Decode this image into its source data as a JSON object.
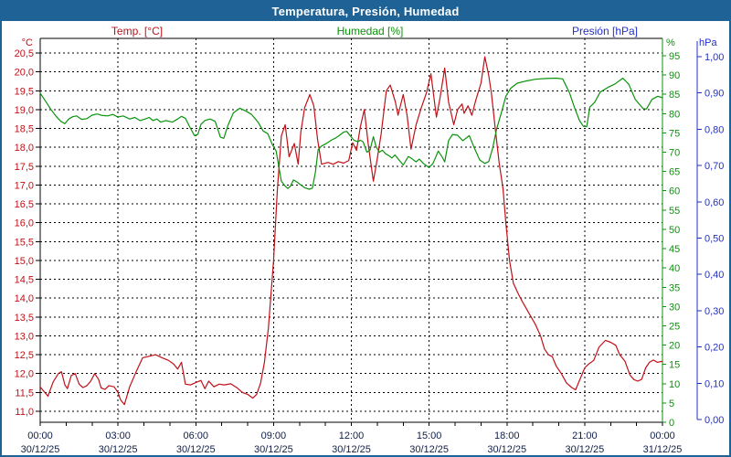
{
  "window_title": "Temperatura, Presión, Humedad",
  "colors": {
    "frame": "#1f6296",
    "titlebar_text": "#ffffff",
    "temperature": "#c01018",
    "humidity": "#0a930a",
    "pressure": "#2230c8",
    "x_labels": "#101f46",
    "grid": "#000000",
    "axis_black": "#000000",
    "plot_background": "#ffffff"
  },
  "legend": {
    "temperature": "Temp. [°C]",
    "humidity": "Humedad [%]",
    "pressure": "Presión [hPa]"
  },
  "chart_data": {
    "type": "line",
    "title": "Temperatura, Presión, Humedad",
    "grid": "dashed, horizontal every 0.5 °C of left axis, vertical every 3 h",
    "x_axis": {
      "range_hours": [
        0,
        24
      ],
      "minor_tick_every_hours": 1,
      "gridline_every_hours": 3,
      "tick_labels": [
        {
          "hour": 0,
          "time": "00:00",
          "date": "30/12/25"
        },
        {
          "hour": 3,
          "time": "03:00",
          "date": "30/12/25"
        },
        {
          "hour": 6,
          "time": "06:00",
          "date": "30/12/25"
        },
        {
          "hour": 9,
          "time": "09:00",
          "date": "30/12/25"
        },
        {
          "hour": 12,
          "time": "12:00",
          "date": "30/12/25"
        },
        {
          "hour": 15,
          "time": "15:00",
          "date": "30/12/25"
        },
        {
          "hour": 18,
          "time": "18:00",
          "date": "30/12/25"
        },
        {
          "hour": 21,
          "time": "21:00",
          "date": "30/12/25"
        },
        {
          "hour": 24,
          "time": "00:00",
          "date": "31/12/25"
        }
      ]
    },
    "axes": {
      "temperature": {
        "unit": "°C",
        "side": "left",
        "min": 11.0,
        "max": 20.5,
        "step": 0.5,
        "decimals": 1,
        "decimal_separator": ","
      },
      "humidity": {
        "unit": "%",
        "side": "right",
        "min": 0,
        "max": 95,
        "step": 5,
        "decimals": 0,
        "decimal_separator": ","
      },
      "pressure": {
        "unit": "hPa",
        "side": "far-right",
        "min": 0.0,
        "max": 1.0,
        "step": 0.1,
        "decimals": 2,
        "decimal_separator": ","
      }
    },
    "series": [
      {
        "name": "Temp. [°C]",
        "axis": "temperature",
        "color": "#c01018",
        "points": [
          [
            0,
            11.65
          ],
          [
            0.15,
            11.52
          ],
          [
            0.3,
            11.4
          ],
          [
            0.5,
            11.78
          ],
          [
            0.7,
            12.0
          ],
          [
            0.82,
            12.05
          ],
          [
            0.95,
            11.7
          ],
          [
            1.05,
            11.6
          ],
          [
            1.2,
            11.95
          ],
          [
            1.35,
            12.0
          ],
          [
            1.5,
            11.72
          ],
          [
            1.65,
            11.63
          ],
          [
            1.8,
            11.68
          ],
          [
            1.95,
            11.8
          ],
          [
            2.1,
            12.0
          ],
          [
            2.25,
            11.85
          ],
          [
            2.35,
            11.62
          ],
          [
            2.5,
            11.58
          ],
          [
            2.65,
            11.68
          ],
          [
            2.85,
            11.65
          ],
          [
            3.0,
            11.5
          ],
          [
            3.1,
            11.3
          ],
          [
            3.25,
            11.18
          ],
          [
            3.45,
            11.65
          ],
          [
            3.7,
            12.05
          ],
          [
            3.95,
            12.42
          ],
          [
            4.2,
            12.46
          ],
          [
            4.45,
            12.5
          ],
          [
            4.7,
            12.42
          ],
          [
            4.95,
            12.35
          ],
          [
            5.15,
            12.25
          ],
          [
            5.3,
            12.12
          ],
          [
            5.45,
            12.3
          ],
          [
            5.6,
            11.72
          ],
          [
            5.8,
            11.7
          ],
          [
            6.0,
            11.76
          ],
          [
            6.2,
            11.82
          ],
          [
            6.35,
            11.6
          ],
          [
            6.5,
            11.8
          ],
          [
            6.7,
            11.65
          ],
          [
            6.9,
            11.72
          ],
          [
            7.1,
            11.7
          ],
          [
            7.35,
            11.73
          ],
          [
            7.6,
            11.62
          ],
          [
            7.8,
            11.5
          ],
          [
            8.0,
            11.45
          ],
          [
            8.2,
            11.35
          ],
          [
            8.35,
            11.45
          ],
          [
            8.5,
            11.75
          ],
          [
            8.65,
            12.3
          ],
          [
            8.8,
            13.2
          ],
          [
            9.0,
            15.0
          ],
          [
            9.15,
            16.9
          ],
          [
            9.3,
            18.3
          ],
          [
            9.45,
            18.6
          ],
          [
            9.6,
            17.75
          ],
          [
            9.8,
            18.1
          ],
          [
            9.95,
            17.55
          ],
          [
            10.05,
            18.4
          ],
          [
            10.2,
            19.05
          ],
          [
            10.4,
            19.4
          ],
          [
            10.55,
            19.1
          ],
          [
            10.7,
            18.2
          ],
          [
            10.85,
            17.55
          ],
          [
            11.1,
            17.6
          ],
          [
            11.3,
            17.55
          ],
          [
            11.5,
            17.62
          ],
          [
            11.7,
            17.58
          ],
          [
            11.9,
            17.65
          ],
          [
            12.05,
            18.12
          ],
          [
            12.2,
            17.92
          ],
          [
            12.35,
            18.55
          ],
          [
            12.5,
            19.0
          ],
          [
            12.65,
            18.1
          ],
          [
            12.85,
            17.1
          ],
          [
            13.0,
            17.7
          ],
          [
            13.15,
            18.35
          ],
          [
            13.35,
            19.5
          ],
          [
            13.5,
            19.65
          ],
          [
            13.7,
            19.2
          ],
          [
            13.8,
            18.85
          ],
          [
            14.0,
            19.4
          ],
          [
            14.15,
            18.85
          ],
          [
            14.3,
            17.95
          ],
          [
            14.5,
            18.6
          ],
          [
            14.7,
            19.05
          ],
          [
            14.9,
            19.45
          ],
          [
            15.07,
            19.95
          ],
          [
            15.28,
            18.8
          ],
          [
            15.42,
            19.3
          ],
          [
            15.6,
            20.1
          ],
          [
            15.75,
            19.2
          ],
          [
            15.95,
            18.6
          ],
          [
            16.1,
            19.0
          ],
          [
            16.27,
            19.15
          ],
          [
            16.35,
            18.9
          ],
          [
            16.5,
            19.1
          ],
          [
            16.65,
            18.85
          ],
          [
            16.8,
            19.25
          ],
          [
            17.0,
            19.7
          ],
          [
            17.15,
            20.4
          ],
          [
            17.3,
            19.9
          ],
          [
            17.4,
            19.45
          ],
          [
            17.55,
            18.5
          ],
          [
            17.7,
            17.6
          ],
          [
            17.85,
            16.9
          ],
          [
            17.96,
            16.0
          ],
          [
            18.1,
            15.0
          ],
          [
            18.25,
            14.4
          ],
          [
            18.45,
            14.1
          ],
          [
            18.6,
            13.9
          ],
          [
            18.85,
            13.6
          ],
          [
            19.1,
            13.3
          ],
          [
            19.3,
            13.0
          ],
          [
            19.45,
            12.65
          ],
          [
            19.6,
            12.5
          ],
          [
            19.75,
            12.45
          ],
          [
            19.9,
            12.2
          ],
          [
            20.1,
            12.0
          ],
          [
            20.3,
            11.75
          ],
          [
            20.5,
            11.63
          ],
          [
            20.65,
            11.57
          ],
          [
            20.85,
            11.9
          ],
          [
            21.0,
            12.15
          ],
          [
            21.15,
            12.25
          ],
          [
            21.35,
            12.35
          ],
          [
            21.55,
            12.7
          ],
          [
            21.8,
            12.88
          ],
          [
            22.0,
            12.83
          ],
          [
            22.2,
            12.75
          ],
          [
            22.35,
            12.5
          ],
          [
            22.55,
            12.33
          ],
          [
            22.75,
            11.96
          ],
          [
            22.9,
            11.84
          ],
          [
            23.05,
            11.8
          ],
          [
            23.2,
            11.85
          ],
          [
            23.35,
            12.15
          ],
          [
            23.5,
            12.3
          ],
          [
            23.65,
            12.36
          ],
          [
            23.8,
            12.3
          ],
          [
            23.95,
            12.32
          ],
          [
            24,
            12.32
          ]
        ]
      },
      {
        "name": "Humedad [%]",
        "axis": "humidity",
        "color": "#0a930a",
        "points": [
          [
            0,
            85.3
          ],
          [
            0.2,
            83.3
          ],
          [
            0.4,
            81.2
          ],
          [
            0.6,
            79.4
          ],
          [
            0.8,
            78.0
          ],
          [
            0.95,
            77.4
          ],
          [
            1.1,
            78.6
          ],
          [
            1.25,
            79.2
          ],
          [
            1.4,
            79.4
          ],
          [
            1.6,
            78.5
          ],
          [
            1.8,
            78.7
          ],
          [
            2.0,
            79.6
          ],
          [
            2.2,
            79.9
          ],
          [
            2.4,
            79.5
          ],
          [
            2.6,
            79.4
          ],
          [
            2.8,
            79.8
          ],
          [
            3.0,
            79.1
          ],
          [
            3.2,
            79.4
          ],
          [
            3.45,
            78.6
          ],
          [
            3.65,
            79.0
          ],
          [
            3.85,
            78.2
          ],
          [
            4.05,
            78.6
          ],
          [
            4.2,
            79.0
          ],
          [
            4.35,
            78.2
          ],
          [
            4.5,
            78.6
          ],
          [
            4.65,
            77.8
          ],
          [
            4.85,
            78.2
          ],
          [
            5.1,
            77.8
          ],
          [
            5.3,
            78.6
          ],
          [
            5.45,
            79.3
          ],
          [
            5.6,
            78.8
          ],
          [
            5.78,
            76.4
          ],
          [
            5.95,
            74.3
          ],
          [
            6.08,
            74.6
          ],
          [
            6.2,
            77.2
          ],
          [
            6.35,
            78.2
          ],
          [
            6.55,
            78.6
          ],
          [
            6.75,
            78.0
          ],
          [
            6.95,
            73.9
          ],
          [
            7.08,
            73.6
          ],
          [
            7.25,
            77.1
          ],
          [
            7.45,
            80.2
          ],
          [
            7.7,
            81.4
          ],
          [
            7.95,
            80.6
          ],
          [
            8.15,
            79.8
          ],
          [
            8.4,
            77.8
          ],
          [
            8.6,
            75.5
          ],
          [
            8.78,
            74.8
          ],
          [
            8.95,
            72.0
          ],
          [
            9.1,
            70.3
          ],
          [
            9.3,
            62.5
          ],
          [
            9.45,
            61.2
          ],
          [
            9.55,
            60.6
          ],
          [
            9.65,
            61.2
          ],
          [
            9.77,
            62.8
          ],
          [
            9.9,
            62.3
          ],
          [
            10.05,
            61.5
          ],
          [
            10.2,
            60.8
          ],
          [
            10.38,
            60.4
          ],
          [
            10.5,
            60.7
          ],
          [
            10.62,
            65.0
          ],
          [
            10.72,
            70.7
          ],
          [
            10.85,
            71.6
          ],
          [
            11.05,
            72.3
          ],
          [
            11.25,
            73.2
          ],
          [
            11.4,
            73.7
          ],
          [
            11.55,
            74.4
          ],
          [
            11.7,
            75.2
          ],
          [
            11.82,
            75.4
          ],
          [
            11.95,
            74.3
          ],
          [
            12.1,
            73.1
          ],
          [
            12.25,
            72.7
          ],
          [
            12.35,
            73.1
          ],
          [
            12.45,
            72.7
          ],
          [
            12.6,
            70.0
          ],
          [
            12.72,
            70.5
          ],
          [
            12.85,
            74.0
          ],
          [
            12.95,
            71.5
          ],
          [
            13.08,
            70.0
          ],
          [
            13.2,
            70.5
          ],
          [
            13.32,
            69.6
          ],
          [
            13.45,
            69.1
          ],
          [
            13.57,
            68.5
          ],
          [
            13.68,
            69.3
          ],
          [
            13.85,
            67.9
          ],
          [
            14.0,
            66.7
          ],
          [
            14.2,
            68.9
          ],
          [
            14.32,
            68.4
          ],
          [
            14.5,
            67.5
          ],
          [
            14.62,
            68.2
          ],
          [
            14.78,
            67.1
          ],
          [
            15.0,
            66.0
          ],
          [
            15.15,
            67.1
          ],
          [
            15.35,
            70.3
          ],
          [
            15.5,
            68.8
          ],
          [
            15.6,
            67.5
          ],
          [
            15.75,
            73.0
          ],
          [
            15.9,
            74.6
          ],
          [
            16.1,
            74.4
          ],
          [
            16.3,
            73.0
          ],
          [
            16.55,
            74.3
          ],
          [
            16.75,
            71.0
          ],
          [
            16.95,
            68.0
          ],
          [
            17.15,
            67.1
          ],
          [
            17.3,
            67.6
          ],
          [
            17.45,
            71.0
          ],
          [
            17.6,
            75.9
          ],
          [
            17.8,
            80.6
          ],
          [
            17.96,
            84.5
          ],
          [
            18.15,
            86.6
          ],
          [
            18.4,
            87.9
          ],
          [
            18.7,
            88.4
          ],
          [
            19.1,
            88.9
          ],
          [
            19.5,
            89.1
          ],
          [
            19.9,
            89.2
          ],
          [
            20.15,
            89.0
          ],
          [
            20.42,
            85.3
          ],
          [
            20.6,
            81.7
          ],
          [
            20.8,
            78.2
          ],
          [
            20.95,
            76.7
          ],
          [
            21.08,
            76.6
          ],
          [
            21.2,
            81.7
          ],
          [
            21.38,
            82.9
          ],
          [
            21.6,
            85.6
          ],
          [
            21.9,
            86.8
          ],
          [
            22.17,
            87.7
          ],
          [
            22.47,
            89.2
          ],
          [
            22.7,
            87.6
          ],
          [
            22.95,
            83.7
          ],
          [
            23.25,
            81.3
          ],
          [
            23.38,
            81.2
          ],
          [
            23.6,
            83.7
          ],
          [
            23.82,
            84.5
          ],
          [
            24,
            84.1
          ]
        ]
      },
      {
        "name": "Presión [hPa]",
        "axis": "pressure",
        "color": "#2230c8",
        "points": []
      }
    ]
  }
}
